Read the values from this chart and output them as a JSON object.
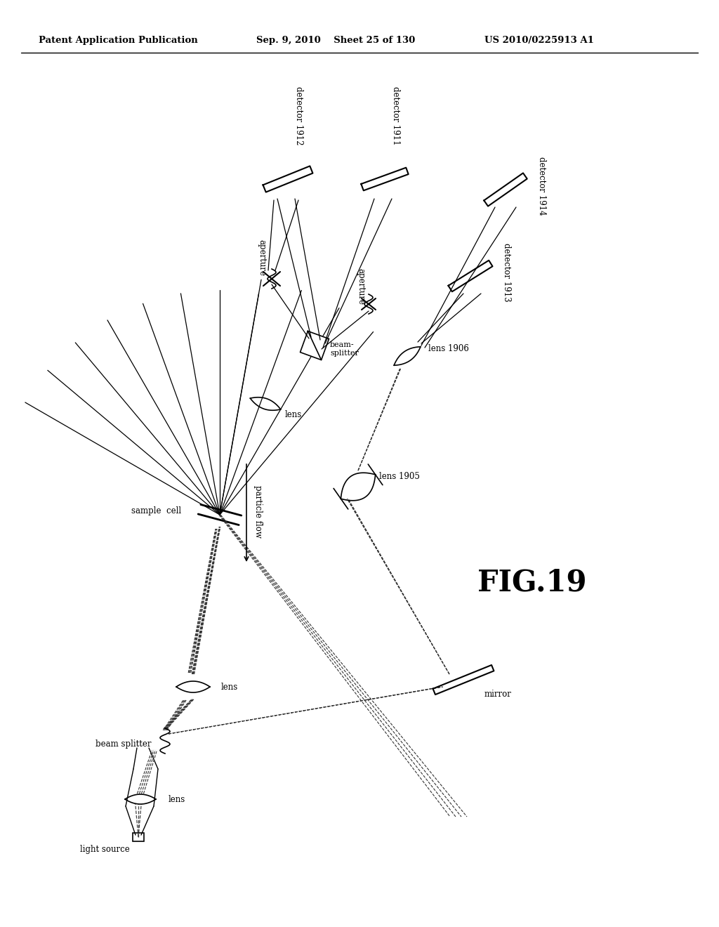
{
  "header_left": "Patent Application Publication",
  "header_mid": "Sep. 9, 2010    Sheet 25 of 130",
  "header_right": "US 2010/0225913 A1",
  "fig_label": "FIG.19",
  "bg_color": "#ffffff"
}
